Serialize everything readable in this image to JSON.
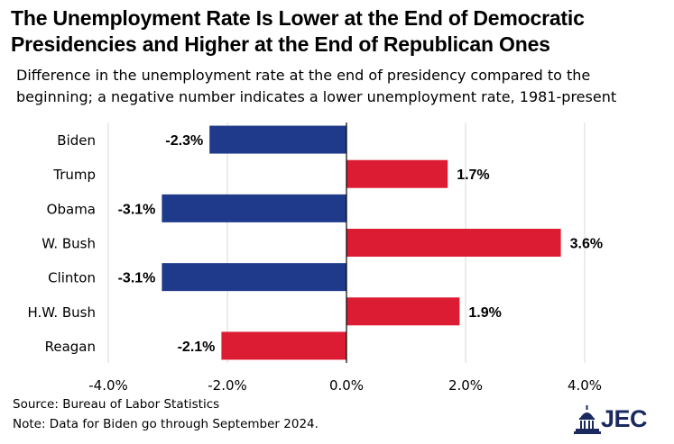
{
  "title": "The Unemployment Rate Is Lower at the End of Democratic Presidencies and Higher at the End of Republican Ones",
  "subtitle": "Difference in the unemployment rate at the end of presidency compared to the beginning; a negative number indicates a lower unemployment rate, 1981-present",
  "source": "Source: Bureau of Labor Statistics",
  "note": "Note: Data for Biden go through September 2024.",
  "logo": {
    "text": "JEC",
    "icon": "capitol-dome-icon"
  },
  "colors": {
    "democratic": "#1f3a8a",
    "republican": "#dc1c33",
    "grid": "#d9d9d9",
    "axis": "#000000"
  },
  "chart_data": {
    "type": "bar",
    "orientation": "horizontal",
    "title": "The Unemployment Rate Is Lower at the End of Democratic Presidencies and Higher at the End of Republican Ones",
    "subtitle": "Difference in the unemployment rate at the end of presidency compared to the beginning; a negative number indicates a lower unemployment rate, 1981-present",
    "categories": [
      "Biden",
      "Trump",
      "Obama",
      "W. Bush",
      "Clinton",
      "H.W. Bush",
      "Reagan"
    ],
    "values": [
      -2.3,
      1.7,
      -3.1,
      3.6,
      -3.1,
      1.9,
      -2.1
    ],
    "data_labels": [
      "-2.3%",
      "1.7%",
      "-3.1%",
      "3.6%",
      "-3.1%",
      "1.9%",
      "-2.1%"
    ],
    "bar_colors": [
      "#1f3a8a",
      "#dc1c33",
      "#1f3a8a",
      "#dc1c33",
      "#1f3a8a",
      "#dc1c33",
      "#dc1c33"
    ],
    "xlim": [
      -4.0,
      4.0
    ],
    "xticks": [
      -4.0,
      -2.0,
      0.0,
      2.0,
      4.0
    ],
    "xtick_labels": [
      "-4.0%",
      "-2.0%",
      "0.0%",
      "2.0%",
      "4.0%"
    ],
    "xlabel": "",
    "ylabel": "",
    "grid": true,
    "legend": "none"
  }
}
